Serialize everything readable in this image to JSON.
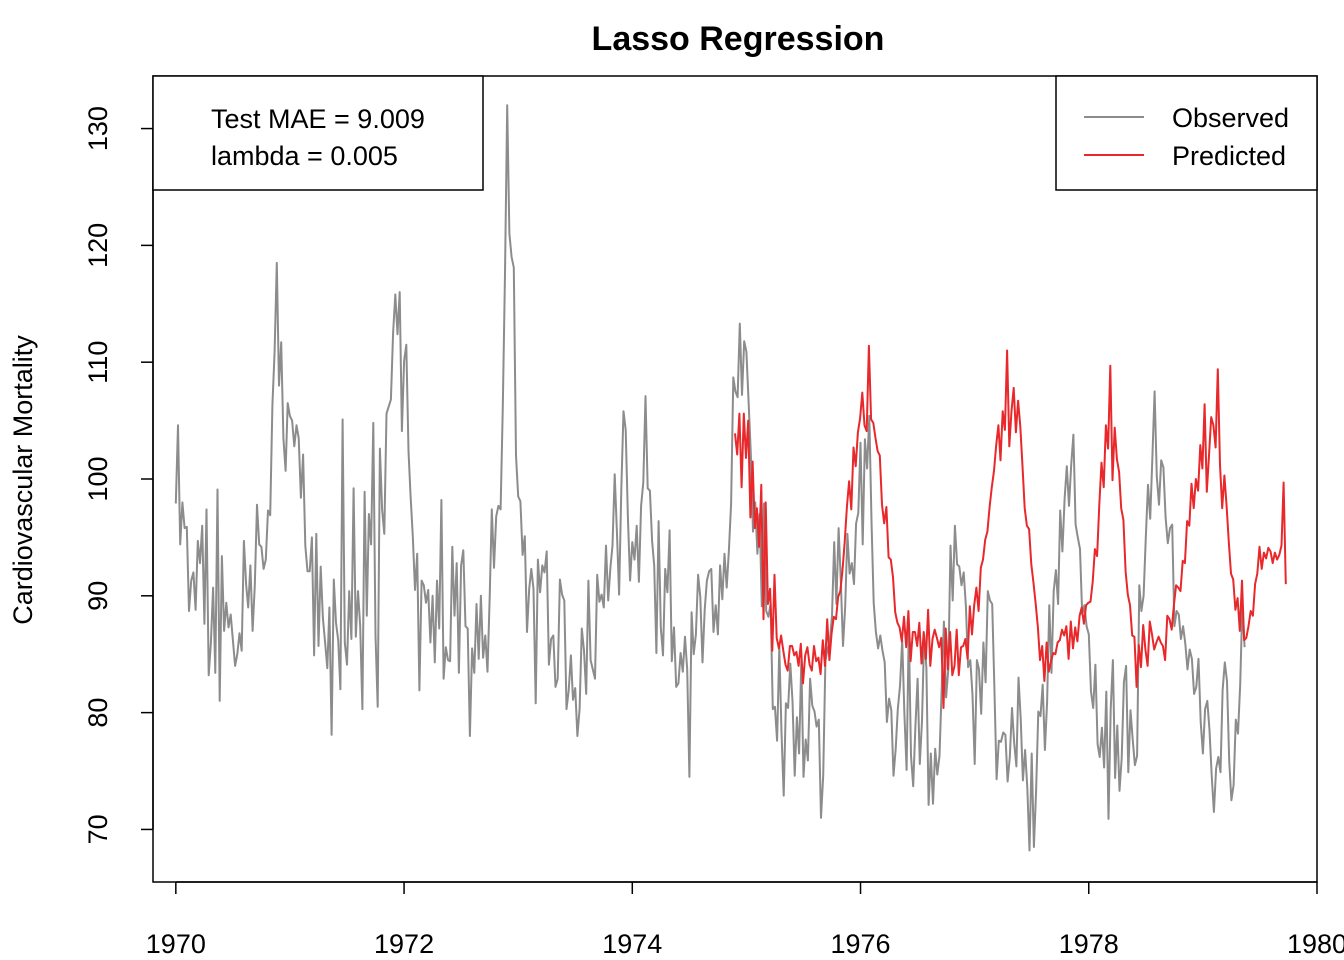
{
  "chart_data": {
    "type": "line",
    "title": "Lasso Regression",
    "xlabel": "",
    "ylabel": "Cardiovascular Mortality",
    "xlim": [
      1969.8,
      1980.0
    ],
    "ylim": [
      65.5,
      134.5
    ],
    "x_ticks": [
      "1970",
      "1972",
      "1974",
      "1976",
      "1978",
      "1980"
    ],
    "y_ticks": [
      "70",
      "80",
      "90",
      "100",
      "110",
      "120",
      "130"
    ],
    "grid": false,
    "annotation_lines": [
      "Test MAE = 9.009",
      "lambda = 0.005"
    ],
    "legend": {
      "placement": "top-right",
      "entries": [
        {
          "label": "Observed",
          "color": "#8c8c8c"
        },
        {
          "label": "Predicted",
          "color": "#e8282b"
        }
      ]
    },
    "series": [
      {
        "name": "Observed",
        "color": "#8c8c8c",
        "x_start": 1970.0,
        "x_step": 0.019231,
        "values": [
          97.9,
          104.6,
          94.4,
          98.0,
          95.8,
          95.9,
          88.7,
          91.3,
          92.0,
          88.8,
          94.7,
          92.8,
          96.0,
          87.6,
          97.4,
          83.2,
          86.0,
          90.7,
          83.4,
          99.1,
          81.0,
          93.4,
          87.0,
          89.4,
          87.3,
          88.4,
          86.2,
          84.0,
          85.0,
          86.8,
          85.3,
          94.7,
          91.0,
          89.0,
          92.6,
          87.0,
          90.9,
          97.8,
          94.4,
          94.2,
          92.3,
          93.1,
          97.3,
          96.9,
          106.3,
          110.9,
          118.5,
          108.0,
          111.7,
          103.5,
          100.7,
          106.5,
          105.4,
          105.0,
          102.8,
          104.6,
          103.5,
          98.4,
          102.1,
          94.3,
          92.1,
          92.1,
          95.0,
          84.9,
          95.3,
          85.7,
          92.5,
          88.1,
          86.0,
          83.8,
          89.0,
          78.1,
          91.4,
          87.7,
          86.2,
          82.0,
          105.1,
          86.0,
          84.1,
          90.4,
          86.3,
          99.2,
          86.5,
          90.4,
          87.4,
          80.3,
          98.9,
          88.3,
          97.0,
          94.4,
          104.8,
          86.6,
          80.5,
          102.6,
          97.4,
          95.3,
          105.6,
          106.2,
          106.8,
          112.5,
          115.8,
          112.4,
          116.0,
          104.1,
          110.1,
          111.5,
          102.4,
          98.5,
          95.1,
          90.5,
          93.6,
          81.9,
          91.3,
          90.9,
          89.4,
          90.5,
          86.0,
          90.0,
          84.3,
          91.3,
          87.2,
          98.2,
          82.9,
          85.6,
          84.5,
          84.4,
          94.2,
          88.3,
          92.8,
          83.4,
          92.6,
          93.9,
          87.4,
          87.2,
          78.0,
          85.5,
          83.4,
          89.3,
          84.6,
          90.0,
          84.7,
          86.6,
          83.5,
          89.9,
          97.4,
          92.4,
          96.8,
          97.7,
          97.4,
          106.2,
          117.6,
          132.0,
          121.0,
          119.0,
          118.1,
          102.0,
          98.5,
          98.1,
          93.5,
          95.1,
          86.9,
          90.6,
          92.3,
          90.6,
          80.8,
          93.1,
          90.3,
          92.6,
          92.0,
          93.8,
          84.1,
          86.3,
          86.6,
          82.2,
          82.9,
          91.4,
          90.1,
          89.6,
          80.3,
          81.9,
          84.9,
          81.1,
          82.1,
          78.0,
          80.3,
          87.2,
          85.3,
          81.6,
          91.3,
          84.5,
          83.7,
          82.9,
          91.8,
          89.5,
          90.1,
          89.0,
          94.3,
          89.6,
          92.4,
          94.3,
          100.4,
          95.5,
          90.1,
          99.1,
          105.8,
          104.2,
          96.7,
          91.3,
          94.6,
          93.1,
          96.0,
          91.2,
          97.7,
          99.7,
          107.1,
          99.2,
          99.0,
          94.7,
          92.6,
          85.1,
          96.4,
          87.3,
          84.9,
          92.3,
          90.3,
          95.6,
          84.4,
          87.3,
          82.2,
          82.5,
          85.1,
          83.5,
          86.5,
          83.7,
          74.5,
          88.6,
          85.0,
          86.7,
          91.8,
          89.9,
          84.3,
          88.8,
          91.3,
          92.1,
          92.3,
          86.9,
          89.2,
          86.7,
          92.6,
          89.7,
          93.6,
          90.7,
          93.9,
          97.9,
          108.7,
          107.5,
          107.0,
          113.3,
          107.2,
          111.8,
          110.9,
          106.6,
          102.2,
          95.5,
          98.0,
          93.6,
          97.0,
          89.1,
          97.9,
          88.7,
          88.2,
          89.3,
          80.3,
          80.5,
          77.6,
          85.6,
          78.3,
          72.9,
          80.8,
          80.4,
          84.2,
          81.0,
          74.6,
          79.6,
          76.5,
          84.4,
          74.5,
          77.7,
          75.9,
          82.9,
          80.6,
          80.1,
          78.8,
          79.4,
          71.0,
          74.6,
          84.4,
          85.5,
          86.1,
          88.3,
          94.6,
          89.3,
          95.8,
          91.3,
          85.7,
          89.1,
          95.3,
          91.9,
          92.8,
          91.0,
          96.2,
          97.1,
          103.1,
          94.4,
          103.4,
          100.9,
          105.4,
          96.4,
          89.4,
          86.9,
          85.5,
          86.6,
          85.3,
          84.3,
          79.2,
          81.2,
          80.2,
          74.6,
          76.9,
          80.3,
          82.3,
          86.2,
          79.9,
          75.1,
          87.3,
          76.3,
          73.7,
          78.8,
          82.9,
          75.6,
          79.3,
          86.7,
          83.8,
          72.1,
          76.5,
          72.2,
          76.9,
          74.7,
          76.3,
          82.1,
          87.8,
          81.3,
          83.7,
          94.3,
          89.6,
          96.0,
          92.7,
          92.5,
          90.9,
          92.0,
          89.1,
          83.9,
          84.5,
          81.5,
          75.6,
          84.5,
          83.7,
          79.9,
          86.0,
          82.6,
          90.4,
          89.6,
          89.3,
          82.1,
          74.3,
          77.6,
          77.5,
          78.3,
          78.1,
          74.1,
          76.2,
          80.4,
          77.4,
          75.4,
          83.0,
          79.5,
          74.2,
          76.8,
          73.6,
          68.2,
          76.5,
          68.5,
          73.3,
          80.1,
          79.7,
          82.4,
          76.8,
          80.9,
          89.2,
          83.4,
          90.4,
          92.2,
          89.3,
          97.3,
          93.8,
          98.3,
          101.1,
          97.7,
          101.2,
          103.8,
          96.1,
          95.0,
          94.0,
          88.4,
          89.2,
          87.4,
          86.7,
          81.8,
          80.4,
          84.1,
          77.3,
          76.2,
          78.7,
          75.3,
          81.8,
          70.9,
          80.3,
          84.5,
          74.4,
          78.9,
          73.3,
          76.1,
          82.6,
          84.0,
          74.9,
          80.2,
          77.7,
          75.5,
          76.3,
          90.9,
          88.7,
          90.0,
          95.0,
          99.5,
          96.6,
          101.9,
          107.5,
          100.2,
          97.8,
          101.6,
          101.0,
          96.7,
          94.5,
          95.8,
          96.1,
          87.4,
          88.7,
          88.4,
          86.3,
          87.4,
          85.9,
          83.7,
          85.4,
          84.6,
          81.6,
          82.2,
          84.6,
          79.2,
          76.5,
          80.3,
          81.0,
          78.5,
          74.6,
          71.5,
          75.2,
          76.2,
          74.9,
          81.9,
          84.3,
          82.7,
          75.9,
          72.5,
          73.8,
          79.4,
          78.2,
          82.4,
          89.4,
          85.6
        ]
      },
      {
        "name": "Predicted",
        "color": "#e8282b",
        "x_start": 1974.9,
        "x_step": 0.019231,
        "values": [
          103.9,
          102.1,
          105.6,
          99.3,
          105.6,
          101.8,
          105.0,
          96.7,
          101.5,
          95.8,
          97.5,
          94.2,
          99.5,
          88.0,
          98.0,
          89.3,
          90.6,
          85.3,
          91.8,
          86.4,
          85.5,
          86.6,
          85.3,
          84.1,
          83.6,
          85.7,
          85.7,
          84.9,
          85.2,
          84.0,
          85.9,
          82.5,
          84.9,
          85.6,
          84.1,
          83.6,
          85.7,
          84.4,
          84.7,
          83.3,
          86.2,
          84.0,
          88.0,
          84.5,
          86.8,
          88.2,
          88.0,
          89.9,
          90.4,
          92.2,
          94.6,
          97.6,
          99.8,
          97.4,
          102.7,
          101.1,
          104.0,
          105.2,
          107.4,
          104.6,
          104.1,
          111.4,
          105.1,
          104.8,
          103.5,
          102.4,
          102.0,
          97.8,
          96.2,
          97.6,
          93.3,
          93.1,
          91.6,
          88.6,
          87.7,
          87.3,
          86.1,
          88.2,
          85.6,
          88.7,
          84.4,
          86.9,
          86.9,
          85.7,
          87.7,
          84.2,
          86.9,
          84.6,
          88.8,
          84.0,
          86.3,
          87.1,
          86.4,
          85.6,
          86.4,
          80.4,
          87.2,
          83.7,
          86.9,
          83.2,
          84.0,
          87.1,
          83.2,
          85.6,
          85.7,
          86.3,
          84.6,
          89.1,
          86.7,
          89.2,
          90.7,
          88.7,
          92.4,
          93.1,
          94.8,
          95.5,
          97.6,
          99.3,
          100.7,
          102.9,
          104.6,
          101.6,
          105.8,
          104.2,
          111.0,
          102.8,
          105.8,
          107.8,
          104.0,
          106.7,
          104.5,
          101.1,
          97.5,
          96.0,
          95.7,
          92.7,
          91.1,
          89.3,
          87.3,
          84.5,
          85.7,
          82.7,
          86.0,
          83.5,
          84.4,
          85.1,
          85.0,
          86.0,
          86.2,
          87.1,
          86.6,
          87.4,
          84.6,
          87.8,
          85.5,
          87.3,
          86.1,
          88.3,
          89.0,
          87.6,
          89.2,
          89.4,
          89.5,
          91.2,
          94.0,
          93.4,
          97.8,
          101.4,
          99.3,
          104.6,
          102.6,
          109.7,
          99.9,
          104.4,
          101.7,
          100.6,
          97.5,
          96.5,
          92.1,
          90.1,
          89.2,
          86.6,
          86.5,
          82.2,
          85.8,
          83.9,
          87.5,
          85.4,
          84.0,
          87.8,
          86.7,
          85.4,
          86.0,
          86.5,
          86.0,
          85.7,
          84.5,
          88.3,
          88.0,
          87.1,
          89.2,
          90.9,
          90.7,
          90.4,
          93.0,
          92.8,
          96.4,
          96.0,
          99.6,
          97.5,
          100.0,
          99.0,
          102.9,
          100.9,
          106.4,
          98.9,
          102.0,
          105.3,
          104.6,
          102.7,
          109.4,
          101.2,
          97.5,
          100.3,
          97.7,
          94.6,
          91.9,
          91.4,
          88.8,
          89.8,
          87.0,
          91.3,
          86.2,
          86.4,
          87.4,
          88.7,
          88.3,
          91.0,
          91.9,
          94.2,
          92.3,
          93.7,
          93.2,
          94.1,
          93.8,
          92.8,
          93.7,
          93.1,
          93.5,
          94.3,
          99.7,
          91.0
        ]
      }
    ]
  }
}
